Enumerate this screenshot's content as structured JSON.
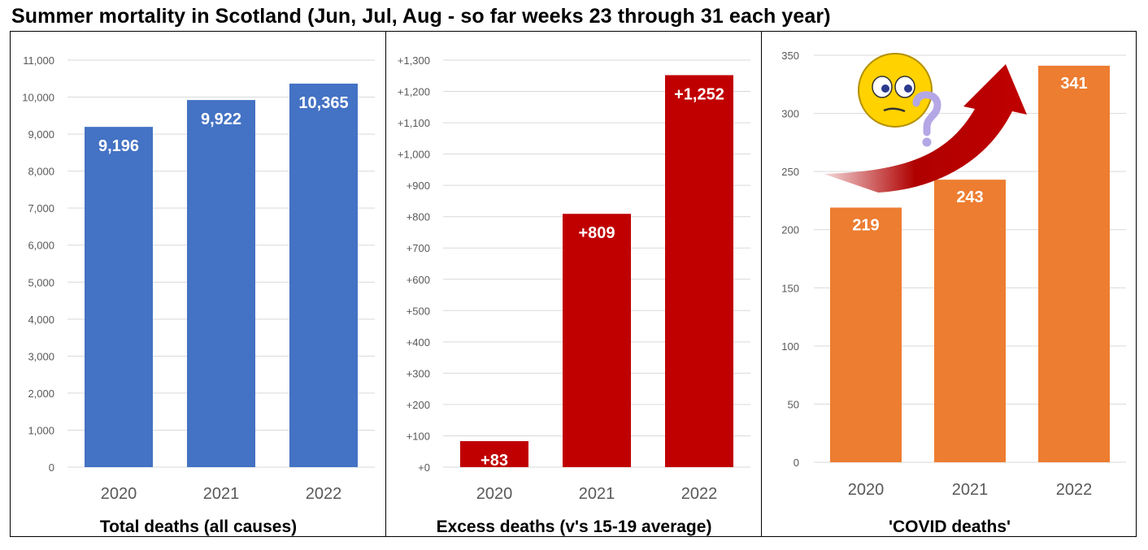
{
  "title": "Summer mortality in Scotland (Jun, Jul, Aug - so far weeks 23 through 31 each year)",
  "chart_data": [
    {
      "type": "bar",
      "title": "Total deaths (all causes)",
      "categories": [
        "2020",
        "2021",
        "2022"
      ],
      "values": [
        9196,
        9922,
        10365
      ],
      "data_labels": [
        "9,196",
        "9,922",
        "10,365"
      ],
      "ylim": [
        0,
        11000
      ],
      "yticks": [
        0,
        1000,
        2000,
        3000,
        4000,
        5000,
        6000,
        7000,
        8000,
        9000,
        10000,
        11000
      ],
      "ytick_labels": [
        "0",
        "1,000",
        "2,000",
        "3,000",
        "4,000",
        "5,000",
        "6,000",
        "7,000",
        "8,000",
        "9,000",
        "10,000",
        "11,000"
      ],
      "color": "#4472c4",
      "grid": true,
      "legend": "none"
    },
    {
      "type": "bar",
      "title": "Excess deaths (v's 15-19 average)",
      "categories": [
        "2020",
        "2021",
        "2022"
      ],
      "values": [
        83,
        809,
        1252
      ],
      "data_labels": [
        "+83",
        "+809",
        "+1,252"
      ],
      "ylim": [
        0,
        1300
      ],
      "yticks": [
        0,
        100,
        200,
        300,
        400,
        500,
        600,
        700,
        800,
        900,
        1000,
        1100,
        1200,
        1300
      ],
      "ytick_labels": [
        "+0",
        "+100",
        "+200",
        "+300",
        "+400",
        "+500",
        "+600",
        "+700",
        "+800",
        "+900",
        "+1,000",
        "+1,100",
        "+1,200",
        "+1,300"
      ],
      "color": "#c00000",
      "grid": true,
      "legend": "none"
    },
    {
      "type": "bar",
      "title": "'COVID deaths'",
      "categories": [
        "2020",
        "2021",
        "2022"
      ],
      "values": [
        219,
        243,
        341
      ],
      "data_labels": [
        "219",
        "243",
        "341"
      ],
      "ylim": [
        0,
        350
      ],
      "yticks": [
        0,
        50,
        100,
        150,
        200,
        250,
        300,
        350
      ],
      "ytick_labels": [
        "0",
        "50",
        "100",
        "150",
        "200",
        "250",
        "300",
        "350"
      ],
      "color": "#ed7d31",
      "grid": true,
      "legend": "none",
      "annotations": [
        "rising-arrow",
        "puzzled-face"
      ]
    }
  ],
  "annotation_colors": {
    "arrow": "#c00000",
    "face": "#ffd200",
    "question_mark": "#b4a7e5"
  }
}
